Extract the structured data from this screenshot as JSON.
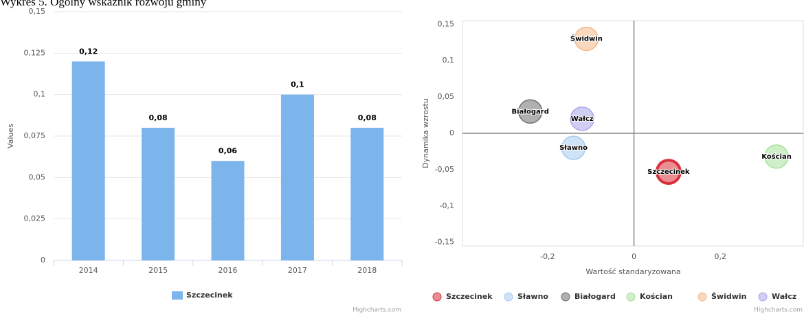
{
  "caption": "Wykres 5. Ogólny wskaźnik rozwoju gminy",
  "chart_data": [
    {
      "type": "bar",
      "y_label": "Values",
      "categories": [
        "2014",
        "2015",
        "2016",
        "2017",
        "2018"
      ],
      "series": [
        {
          "name": "Szczecinek",
          "color": "#7cb5ec",
          "values": [
            0.12,
            0.08,
            0.06,
            0.1,
            0.08
          ],
          "value_labels": [
            "0,12",
            "0,08",
            "0,06",
            "0,1",
            "0,08"
          ]
        }
      ],
      "ylim": [
        0,
        0.15
      ],
      "yticks": [
        0,
        {
          "value": 0.025,
          "label": "0,025"
        },
        {
          "value": 0.05,
          "label": "0,05"
        },
        {
          "value": 0.075,
          "label": "0,075"
        },
        {
          "value": 0.1,
          "label": "0,1"
        },
        {
          "value": 0.125,
          "label": "0,125"
        },
        {
          "value": 0.15,
          "label": "0,15"
        }
      ],
      "grid": true,
      "legend": "bottom",
      "credits": "Highcharts.com"
    },
    {
      "type": "scatter",
      "x_label": "Wartość standaryzowana",
      "y_label": "Dynamika wzrostu",
      "series": [
        {
          "name": "Szczecinek",
          "color": "#d9313d",
          "x": [
            0.08
          ],
          "values": [
            -0.053
          ]
        },
        {
          "name": "Sławno",
          "color": "#a7cbef",
          "x": [
            -0.14
          ],
          "values": [
            -0.02
          ]
        },
        {
          "name": "Białogard",
          "color": "#6f6f6f",
          "x": [
            -0.24
          ],
          "values": [
            0.03
          ]
        },
        {
          "name": "Kościan",
          "color": "#a6e19b",
          "x": [
            0.33
          ],
          "values": [
            -0.032
          ]
        },
        {
          "name": "Świdwin",
          "color": "#f5b887",
          "x": [
            -0.11
          ],
          "values": [
            0.13
          ]
        },
        {
          "name": "Wałcz",
          "color": "#aaa6ea",
          "x": [
            -0.12
          ],
          "values": [
            0.02
          ]
        }
      ],
      "xlim": [
        -0.397,
        0.392
      ],
      "xticks": [
        {
          "value": -0.2,
          "label": "-0,2"
        },
        0,
        {
          "value": 0.2,
          "label": "0,2"
        }
      ],
      "ylim": [
        -0.155,
        0.155
      ],
      "yticks": [
        {
          "value": -0.15,
          "label": "-0,15"
        },
        {
          "value": -0.1,
          "label": "-0,1"
        },
        {
          "value": -0.05,
          "label": "-0,05"
        },
        0,
        {
          "value": 0.05,
          "label": "0,05"
        },
        {
          "value": 0.1,
          "label": "0,1"
        },
        {
          "value": 0.15,
          "label": "0,15"
        }
      ],
      "legend": "bottom",
      "credits": "Highcharts.com"
    }
  ]
}
